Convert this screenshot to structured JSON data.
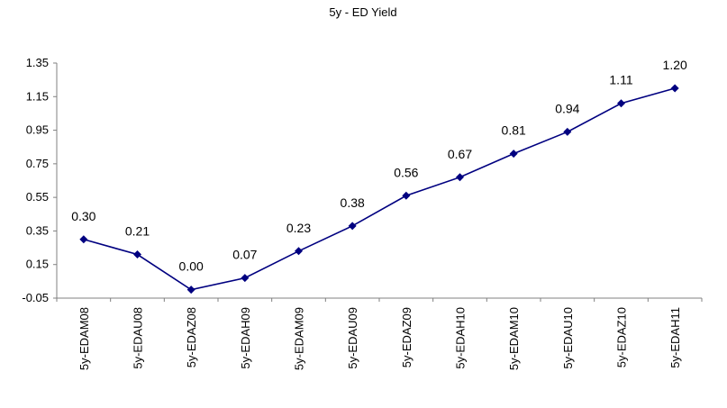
{
  "chart_data": {
    "type": "line",
    "title": "5y - ED Yield",
    "xlabel": "",
    "ylabel": "",
    "categories": [
      "5y-EDAM08",
      "5y-EDAU08",
      "5y-EDAZ08",
      "5y-EDAH09",
      "5y-EDAM09",
      "5y-EDAU09",
      "5y-EDAZ09",
      "5y-EDAH10",
      "5y-EDAM10",
      "5y-EDAU10",
      "5y-EDAZ10",
      "5y-EDAH11"
    ],
    "series": [
      {
        "values": [
          0.3,
          0.21,
          0.0,
          0.07,
          0.23,
          0.38,
          0.56,
          0.67,
          0.81,
          0.94,
          1.11,
          1.2
        ],
        "data_labels": [
          "0.30",
          "0.21",
          "0.00",
          "0.07",
          "0.23",
          "0.38",
          "0.56",
          "0.67",
          "0.81",
          "0.94",
          "1.11",
          "1.20"
        ],
        "color": "#000080",
        "marker": "diamond"
      }
    ],
    "ylim": [
      -0.05,
      1.35
    ],
    "yticks": [
      -0.05,
      0.15,
      0.35,
      0.55,
      0.75,
      0.95,
      1.15,
      1.35
    ],
    "ytick_labels": [
      "-0.05",
      "0.15",
      "0.35",
      "0.55",
      "0.75",
      "0.95",
      "1.15",
      "1.35"
    ],
    "grid": false,
    "legend": "none"
  }
}
